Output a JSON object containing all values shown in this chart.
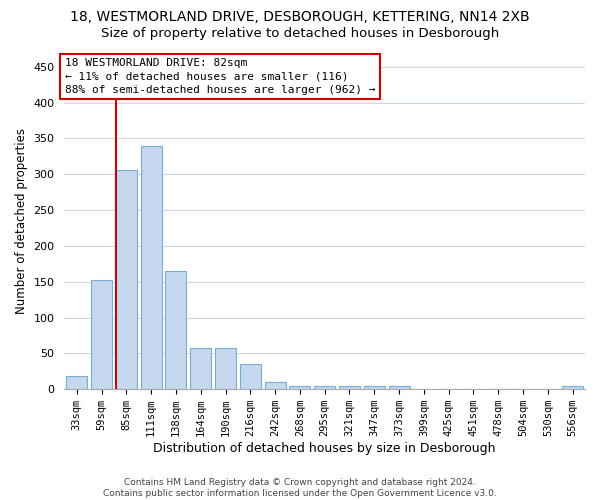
{
  "title": "18, WESTMORLAND DRIVE, DESBOROUGH, KETTERING, NN14 2XB",
  "subtitle": "Size of property relative to detached houses in Desborough",
  "xlabel": "Distribution of detached houses by size in Desborough",
  "ylabel": "Number of detached properties",
  "categories": [
    "33sqm",
    "59sqm",
    "85sqm",
    "111sqm",
    "138sqm",
    "164sqm",
    "190sqm",
    "216sqm",
    "242sqm",
    "268sqm",
    "295sqm",
    "321sqm",
    "347sqm",
    "373sqm",
    "399sqm",
    "425sqm",
    "451sqm",
    "478sqm",
    "504sqm",
    "530sqm",
    "556sqm"
  ],
  "values": [
    18,
    152,
    306,
    340,
    165,
    57,
    57,
    35,
    10,
    5,
    5,
    5,
    5,
    5,
    0,
    0,
    0,
    0,
    0,
    0,
    5
  ],
  "bar_color": "#c5d8ef",
  "bar_edge_color": "#7aadd4",
  "vline_color": "#cc0000",
  "vline_x": 1.575,
  "annotation_text": "18 WESTMORLAND DRIVE: 82sqm\n← 11% of detached houses are smaller (116)\n88% of semi-detached houses are larger (962) →",
  "annotation_box_color": "#ffffff",
  "annotation_box_edge_color": "#cc0000",
  "ylim": [
    0,
    470
  ],
  "yticks": [
    0,
    50,
    100,
    150,
    200,
    250,
    300,
    350,
    400,
    450
  ],
  "background_color": "#ffffff",
  "grid_color": "#d0d8e8",
  "footer_text": "Contains HM Land Registry data © Crown copyright and database right 2024.\nContains public sector information licensed under the Open Government Licence v3.0.",
  "title_fontsize": 10,
  "subtitle_fontsize": 9.5,
  "xlabel_fontsize": 9,
  "ylabel_fontsize": 8.5,
  "tick_fontsize": 7.5,
  "annotation_fontsize": 8,
  "footer_fontsize": 6.5
}
